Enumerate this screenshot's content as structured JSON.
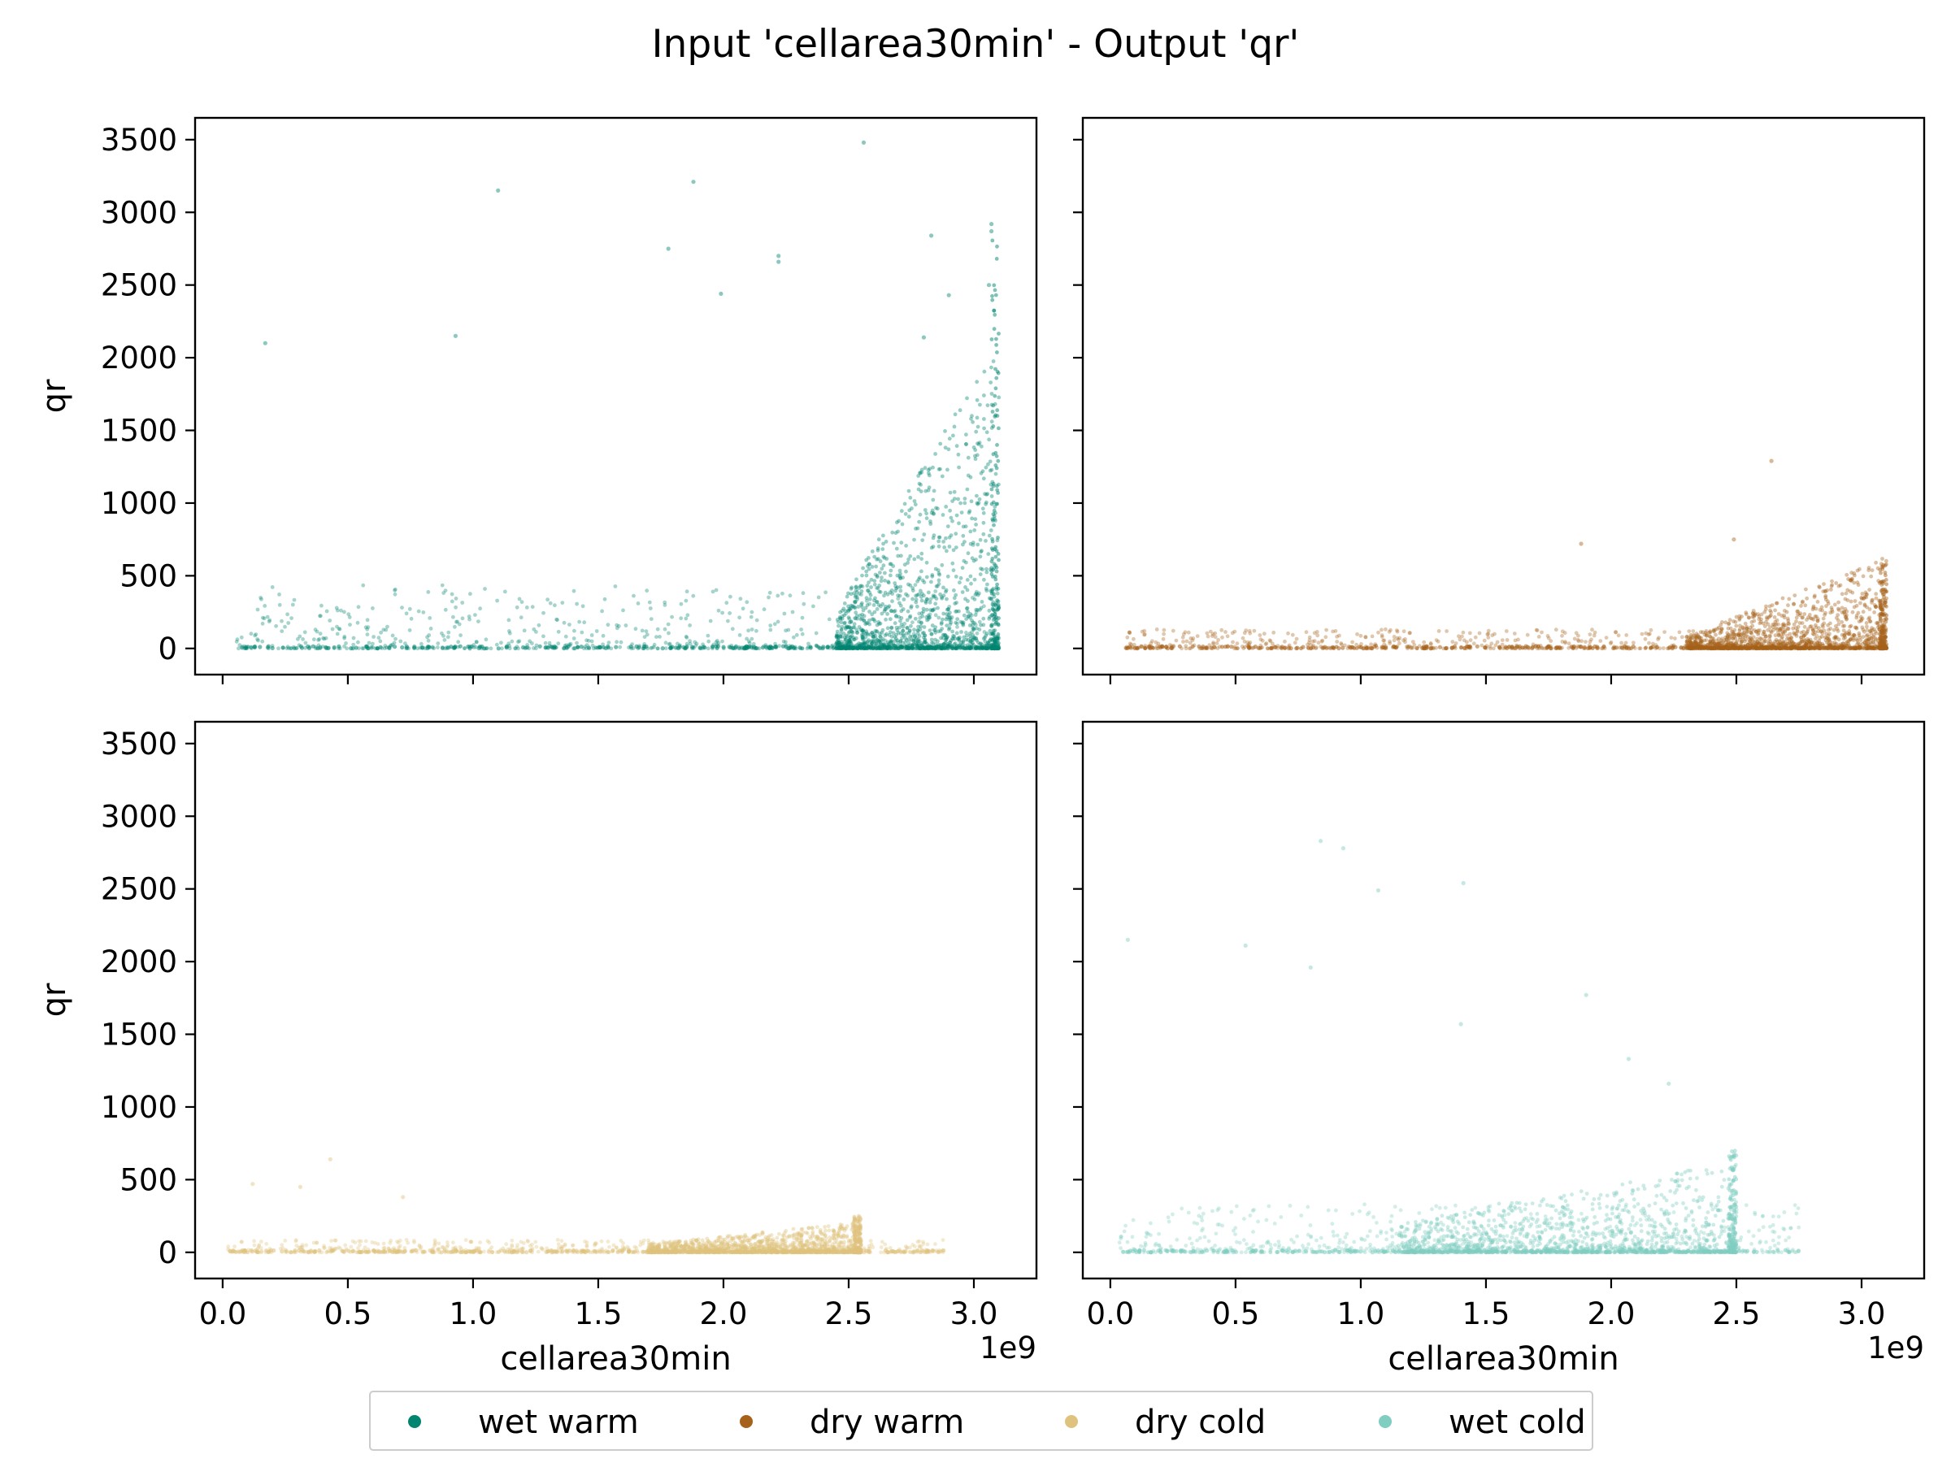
{
  "chart_data": {
    "type": "scatter",
    "title": "Input 'cellarea30min' - Output 'qr'",
    "xlabel": "cellarea30min",
    "ylabel": "qr",
    "x_offset_text": "1e9",
    "xlim": [
      -0.11,
      3.25
    ],
    "ylim": [
      -180,
      3650
    ],
    "x_ticks": [
      0.0,
      0.5,
      1.0,
      1.5,
      2.0,
      2.5,
      3.0
    ],
    "x_tick_labels": [
      "0.0",
      "0.5",
      "1.0",
      "1.5",
      "2.0",
      "2.5",
      "3.0"
    ],
    "y_ticks": [
      0,
      500,
      1000,
      1500,
      2000,
      2500,
      3000,
      3500
    ],
    "y_tick_labels": [
      "0",
      "500",
      "1000",
      "1500",
      "2000",
      "2500",
      "3000",
      "3500"
    ],
    "legend": {
      "placement": "bottom-center",
      "items": [
        {
          "label": "wet warm",
          "color": "#018571"
        },
        {
          "label": "dry warm",
          "color": "#a6611a"
        },
        {
          "label": "dry cold",
          "color": "#dfc27d"
        },
        {
          "label": "wet cold",
          "color": "#80cdc1"
        }
      ]
    },
    "panels": [
      {
        "series": "wet warm",
        "color": "#018571",
        "x_range": [
          0.05,
          3.1
        ],
        "dense_region": [
          2.45,
          3.1
        ],
        "typical_max": [
          200,
          1500
        ],
        "peak": 2900,
        "outliers": [
          [
            0.17,
            2100
          ],
          [
            0.93,
            2150
          ],
          [
            1.1,
            3150
          ],
          [
            1.88,
            3210
          ],
          [
            1.78,
            2750
          ],
          [
            1.99,
            2440
          ],
          [
            2.22,
            2700
          ],
          [
            2.22,
            2660
          ],
          [
            2.56,
            3480
          ],
          [
            2.83,
            2840
          ],
          [
            2.9,
            2430
          ],
          [
            3.07,
            2920
          ],
          [
            3.07,
            2870
          ],
          [
            2.8,
            2140
          ],
          [
            3.06,
            2500
          ]
        ]
      },
      {
        "series": "dry warm",
        "color": "#a6611a",
        "x_range": [
          0.05,
          3.1
        ],
        "dense_region": [
          2.3,
          3.1
        ],
        "typical_max": [
          60,
          450
        ],
        "peak": 600,
        "outliers": [
          [
            2.64,
            1290
          ],
          [
            1.88,
            720
          ],
          [
            2.49,
            750
          ]
        ]
      },
      {
        "series": "dry cold",
        "color": "#dfc27d",
        "x_range": [
          0.02,
          2.88
        ],
        "dense_region": [
          1.7,
          2.55
        ],
        "typical_max": [
          40,
          150
        ],
        "peak": 250,
        "outliers": [
          [
            0.12,
            470
          ],
          [
            0.31,
            450
          ],
          [
            0.43,
            640
          ],
          [
            0.72,
            380
          ]
        ]
      },
      {
        "series": "wet cold",
        "color": "#80cdc1",
        "x_range": [
          0.02,
          2.75
        ],
        "dense_region": [
          1.15,
          2.5
        ],
        "typical_max": [
          150,
          450
        ],
        "peak": 700,
        "outliers": [
          [
            0.07,
            2150
          ],
          [
            0.54,
            2110
          ],
          [
            0.84,
            2830
          ],
          [
            0.93,
            2780
          ],
          [
            1.07,
            2490
          ],
          [
            1.41,
            2540
          ],
          [
            0.8,
            1960
          ],
          [
            1.4,
            1570
          ],
          [
            1.9,
            1770
          ],
          [
            2.07,
            1330
          ],
          [
            2.23,
            1160
          ]
        ]
      }
    ]
  }
}
